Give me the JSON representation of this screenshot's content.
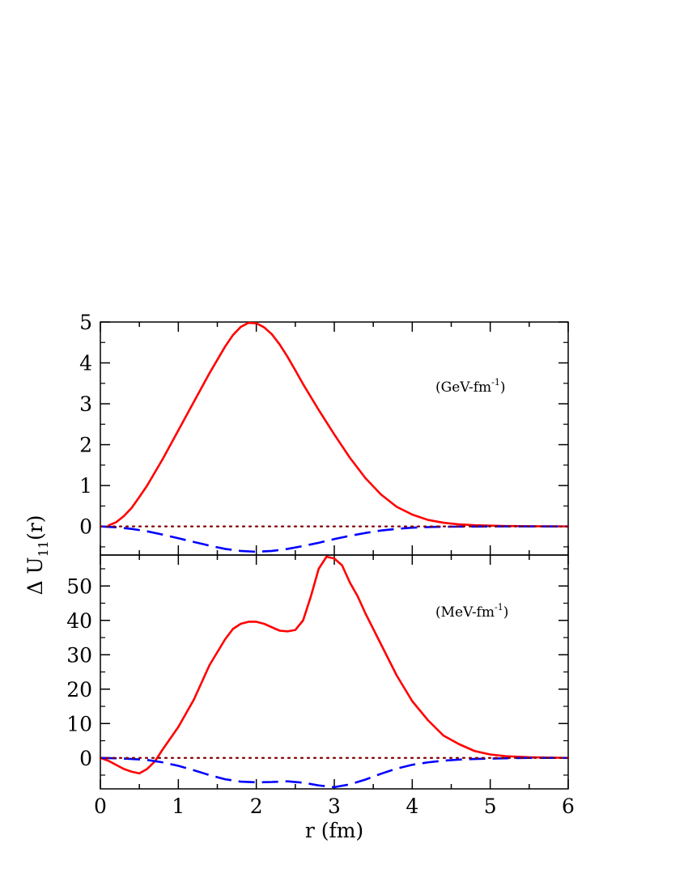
{
  "chart_data": [
    {
      "panel": "top",
      "type": "line",
      "unit_label": {
        "base": "(GeV-fm",
        "sup": "-1",
        "close": ")"
      },
      "xlim": [
        0,
        6
      ],
      "ylim": [
        -0.7,
        5
      ],
      "yticks": [
        0,
        1,
        2,
        3,
        4,
        5
      ],
      "series": [
        {
          "name": "red-solid",
          "color": "#ff0000",
          "dash": "solid",
          "x": [
            0.1,
            0.2,
            0.3,
            0.4,
            0.5,
            0.6,
            0.8,
            1.0,
            1.2,
            1.4,
            1.6,
            1.7,
            1.8,
            1.9,
            2.0,
            2.1,
            2.2,
            2.3,
            2.4,
            2.5,
            2.6,
            2.8,
            3.0,
            3.2,
            3.4,
            3.6,
            3.8,
            4.0,
            4.2,
            4.4,
            4.6,
            4.8,
            5.0,
            5.2,
            5.5,
            6.0
          ],
          "y": [
            0.02,
            0.1,
            0.25,
            0.45,
            0.72,
            1.0,
            1.65,
            2.35,
            3.05,
            3.75,
            4.4,
            4.68,
            4.88,
            4.98,
            4.97,
            4.87,
            4.7,
            4.45,
            4.15,
            3.82,
            3.48,
            2.85,
            2.25,
            1.68,
            1.18,
            0.78,
            0.48,
            0.29,
            0.16,
            0.09,
            0.05,
            0.03,
            0.02,
            0.01,
            0.005,
            0.0
          ]
        },
        {
          "name": "blue-dashed",
          "color": "#0000ff",
          "dash": "dashed",
          "x": [
            0.0,
            0.2,
            0.4,
            0.6,
            0.8,
            1.0,
            1.2,
            1.4,
            1.6,
            1.8,
            2.0,
            2.2,
            2.4,
            2.6,
            2.8,
            3.0,
            3.2,
            3.4,
            3.6,
            3.8,
            4.0,
            4.3,
            4.6,
            5.0,
            5.5,
            6.0
          ],
          "y": [
            0.0,
            -0.02,
            -0.06,
            -0.12,
            -0.2,
            -0.29,
            -0.38,
            -0.47,
            -0.55,
            -0.6,
            -0.62,
            -0.6,
            -0.55,
            -0.48,
            -0.4,
            -0.31,
            -0.23,
            -0.16,
            -0.1,
            -0.06,
            -0.03,
            -0.01,
            -0.005,
            0.0,
            0.0,
            0.0
          ]
        },
        {
          "name": "maroon-dotted",
          "color": "#800000",
          "dash": "dotted",
          "x": [
            0,
            6
          ],
          "y": [
            0,
            0
          ]
        }
      ]
    },
    {
      "panel": "bottom",
      "type": "line",
      "unit_label": {
        "base": "(MeV-fm",
        "sup": "-1",
        "close": ")"
      },
      "xlim": [
        0,
        6
      ],
      "ylim": [
        -9,
        59
      ],
      "yticks": [
        0,
        10,
        20,
        30,
        40,
        50
      ],
      "xticks": [
        0,
        1,
        2,
        3,
        4,
        5,
        6
      ],
      "xlabel": "r (fm)",
      "series": [
        {
          "name": "red-solid",
          "color": "#ff0000",
          "dash": "solid",
          "x": [
            0.0,
            0.1,
            0.2,
            0.3,
            0.4,
            0.5,
            0.6,
            0.7,
            0.8,
            1.0,
            1.2,
            1.4,
            1.6,
            1.7,
            1.8,
            1.9,
            2.0,
            2.1,
            2.2,
            2.3,
            2.4,
            2.5,
            2.6,
            2.7,
            2.8,
            2.9,
            3.0,
            3.1,
            3.2,
            3.3,
            3.4,
            3.6,
            3.8,
            4.0,
            4.2,
            4.4,
            4.6,
            4.8,
            5.0,
            5.2,
            5.5,
            6.0
          ],
          "y": [
            0.0,
            -0.8,
            -2.0,
            -3.2,
            -4.0,
            -4.5,
            -3.2,
            -1.0,
            2.5,
            9.0,
            17.0,
            27.0,
            34.5,
            37.5,
            39.0,
            39.6,
            39.6,
            39.0,
            38.0,
            37.0,
            36.8,
            37.2,
            40.0,
            47.0,
            55.0,
            58.5,
            58.0,
            56.0,
            51.0,
            47.0,
            42.0,
            33.0,
            24.0,
            16.5,
            11.0,
            6.5,
            4.0,
            2.0,
            1.0,
            0.5,
            0.2,
            0.0
          ]
        },
        {
          "name": "blue-dashed",
          "color": "#0000ff",
          "dash": "dashed",
          "x": [
            0.0,
            0.2,
            0.4,
            0.6,
            0.8,
            1.0,
            1.2,
            1.4,
            1.6,
            1.8,
            2.0,
            2.2,
            2.4,
            2.6,
            2.8,
            3.0,
            3.2,
            3.4,
            3.6,
            3.8,
            4.0,
            4.2,
            4.4,
            4.6,
            4.8,
            5.0,
            5.2,
            5.5,
            6.0
          ],
          "y": [
            0.0,
            -0.1,
            -0.3,
            -0.6,
            -1.3,
            -2.3,
            -3.6,
            -5.0,
            -6.2,
            -6.9,
            -7.1,
            -7.0,
            -6.8,
            -7.2,
            -8.0,
            -8.5,
            -7.7,
            -6.3,
            -4.6,
            -3.1,
            -2.0,
            -1.3,
            -0.8,
            -0.5,
            -0.3,
            -0.2,
            -0.1,
            0.0,
            0.0
          ]
        },
        {
          "name": "maroon-dotted",
          "color": "#800000",
          "dash": "dotted",
          "x": [
            0,
            6
          ],
          "y": [
            0,
            0
          ]
        }
      ]
    }
  ],
  "ylabel": {
    "main": "Δ U",
    "sub": "11",
    "tail": "(r)"
  }
}
